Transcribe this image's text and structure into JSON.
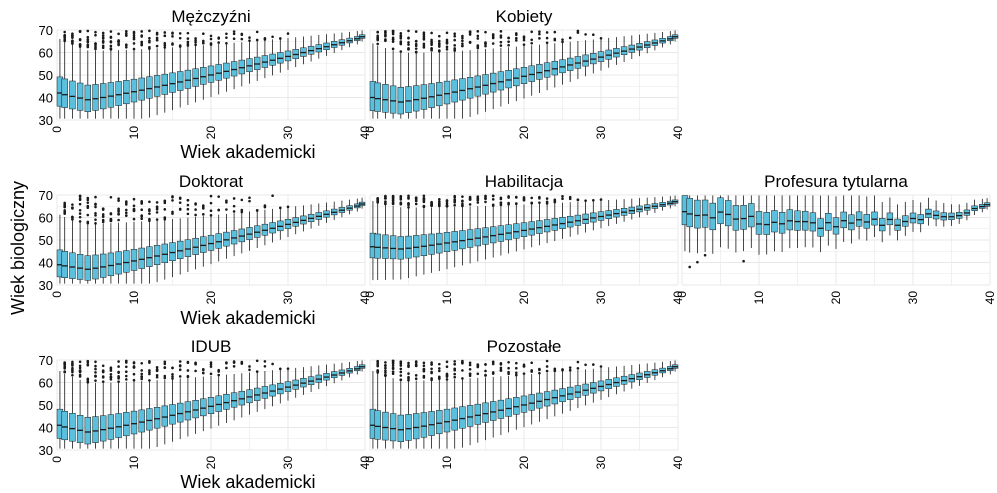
{
  "figure": {
    "ylabel": "Wiek biologiczny",
    "box_fill": "#5bc0de",
    "box_stroke": "#1a1a1a",
    "grid_color": "#e8e8e8"
  },
  "chart_data": [
    {
      "type": "boxplot",
      "title": "Mężczyźni",
      "xlabel": "Wiek akademicki",
      "xlim": [
        0,
        40
      ],
      "ylim": [
        30,
        70
      ],
      "xticks": [
        "0",
        "10",
        "20",
        "30",
        "40"
      ],
      "yticks": [
        "30",
        "40",
        "50",
        "60",
        "70"
      ],
      "median_start": 42,
      "median_peak": 39,
      "median_end": 67,
      "spread": 12,
      "grid": true
    },
    {
      "type": "boxplot",
      "title": "Kobiety",
      "xlabel": "",
      "xlim": [
        0,
        40
      ],
      "ylim": [
        30,
        70
      ],
      "xticks": [
        "0",
        "10",
        "20",
        "30",
        "40"
      ],
      "yticks": [],
      "median_start": 40,
      "median_peak": 38,
      "median_end": 67,
      "spread": 12,
      "grid": true
    },
    {
      "type": "boxplot",
      "title": "Doktorat",
      "xlabel": "Wiek akademicki",
      "xlim": [
        0,
        40
      ],
      "ylim": [
        30,
        70
      ],
      "xticks": [
        "0",
        "10",
        "20",
        "30",
        "40"
      ],
      "yticks": [
        "30",
        "40",
        "50",
        "60",
        "70"
      ],
      "median_start": 39,
      "median_peak": 37,
      "median_end": 66,
      "spread": 11,
      "grid": true
    },
    {
      "type": "boxplot",
      "title": "Habilitacja",
      "xlabel": "",
      "xlim": [
        0,
        40
      ],
      "ylim": [
        30,
        70
      ],
      "xticks": [
        "0",
        "10",
        "20",
        "30",
        "40"
      ],
      "yticks": [],
      "median_start": 47,
      "median_peak": 46,
      "median_end": 67,
      "spread": 10,
      "grid": true
    },
    {
      "type": "boxplot",
      "title": "Profesura tytularna",
      "xlabel": "",
      "xlim": [
        0,
        40
      ],
      "ylim": [
        30,
        70
      ],
      "xticks": [
        "0",
        "10",
        "20",
        "30",
        "40"
      ],
      "yticks": [],
      "median_start": 63,
      "median_peak": 56,
      "median_end": 67,
      "spread": 12,
      "grid": true
    },
    {
      "type": "boxplot",
      "title": "IDUB",
      "xlabel": "Wiek akademicki",
      "xlim": [
        0,
        40
      ],
      "ylim": [
        30,
        70
      ],
      "xticks": [
        "0",
        "10",
        "20",
        "30",
        "40"
      ],
      "yticks": [
        "30",
        "40",
        "50",
        "60",
        "70"
      ],
      "median_start": 41,
      "median_peak": 38,
      "median_end": 67,
      "spread": 12,
      "grid": true
    },
    {
      "type": "boxplot",
      "title": "Pozostałe",
      "xlabel": "",
      "xlim": [
        0,
        40
      ],
      "ylim": [
        30,
        70
      ],
      "xticks": [
        "0",
        "10",
        "20",
        "30",
        "40"
      ],
      "yticks": [],
      "median_start": 41,
      "median_peak": 39,
      "median_end": 67,
      "spread": 12,
      "grid": true
    }
  ]
}
